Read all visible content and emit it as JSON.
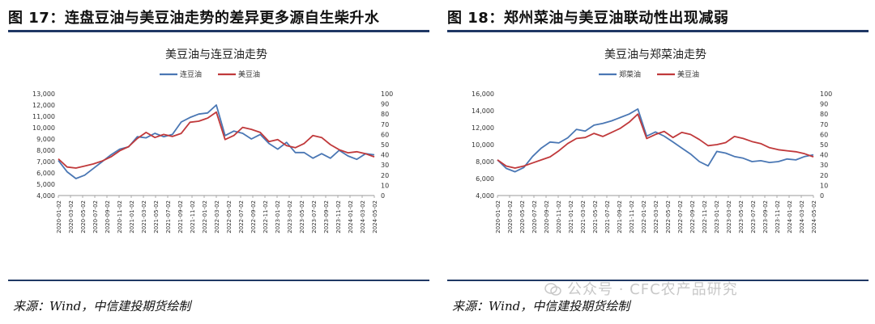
{
  "figures": [
    {
      "title": "图 17：连盘豆油与美豆油走势的差异更多源自生柴升水",
      "source": "来源：Wind，中信建投期货绘制"
    },
    {
      "title": "图 18：郑州菜油与美豆油联动性出现减弱",
      "source": "来源：Wind，中信建投期货绘制"
    }
  ],
  "watermark": "公众号 · CFC农产品研究",
  "colors": {
    "blue": "#4a77b4",
    "red": "#c0393b",
    "rule": "#1f3864"
  },
  "chart_data": [
    {
      "type": "line",
      "title": "美豆油与连豆油走势",
      "legend_position": "top-center",
      "grid": false,
      "x_ticks": [
        "2020-01-02",
        "2020-03-02",
        "2020-05-02",
        "2020-07-02",
        "2020-09-02",
        "2020-11-02",
        "2021-01-02",
        "2021-03-02",
        "2021-05-02",
        "2021-07-02",
        "2021-09-02",
        "2021-11-02",
        "2022-01-02",
        "2022-03-02",
        "2022-05-02",
        "2022-07-02",
        "2022-09-02",
        "2022-11-02",
        "2023-01-02",
        "2023-03-02",
        "2023-05-02",
        "2023-07-02",
        "2023-09-02",
        "2023-11-02",
        "2024-01-02",
        "2024-03-02",
        "2024-05-02"
      ],
      "y_left": {
        "min": 4000,
        "max": 13000,
        "step": 1000,
        "ticks": [
          "4,000",
          "5,000",
          "6,000",
          "7,000",
          "8,000",
          "9,000",
          "10,000",
          "11,000",
          "12,000",
          "13,000"
        ]
      },
      "y_right": {
        "min": 0,
        "max": 100,
        "step": 10,
        "ticks": [
          "0",
          "10",
          "20",
          "30",
          "40",
          "50",
          "60",
          "70",
          "80",
          "90",
          "100"
        ]
      },
      "series": [
        {
          "name": "连豆油",
          "axis": "left",
          "color": "#4a77b4",
          "values": [
            7100,
            6100,
            5500,
            5800,
            6400,
            7000,
            7600,
            8100,
            8300,
            9200,
            9100,
            9500,
            9200,
            9400,
            10500,
            10900,
            11200,
            11300,
            12000,
            9300,
            9700,
            9500,
            9000,
            9400,
            8600,
            8100,
            8700,
            7800,
            7800,
            7300,
            7700,
            7300,
            8000,
            7500,
            7200,
            7700,
            7600
          ]
        },
        {
          "name": "美豆油",
          "axis": "right",
          "color": "#c0393b",
          "values": [
            36,
            28,
            27,
            29,
            31,
            34,
            38,
            44,
            48,
            56,
            62,
            57,
            60,
            58,
            61,
            72,
            73,
            76,
            82,
            55,
            59,
            67,
            65,
            62,
            53,
            55,
            49,
            47,
            51,
            59,
            57,
            50,
            45,
            42,
            43,
            41,
            38
          ]
        }
      ]
    },
    {
      "type": "line",
      "title": "美豆油与郑菜油走势",
      "legend_position": "top-center",
      "grid": false,
      "x_ticks": [
        "2020-01-02",
        "2020-03-02",
        "2020-05-02",
        "2020-07-02",
        "2020-09-02",
        "2020-11-02",
        "2021-01-02",
        "2021-03-02",
        "2021-05-02",
        "2021-07-02",
        "2021-09-02",
        "2021-11-02",
        "2022-01-02",
        "2022-03-02",
        "2022-05-02",
        "2022-07-02",
        "2022-09-02",
        "2022-11-02",
        "2023-01-02",
        "2023-03-02",
        "2023-05-02",
        "2023-07-02",
        "2023-09-02",
        "2023-11-02",
        "2024-01-02",
        "2024-03-02",
        "2024-05-02"
      ],
      "y_left": {
        "min": 4000,
        "max": 16000,
        "step": 2000,
        "ticks": [
          "4,000",
          "6,000",
          "8,000",
          "10,000",
          "12,000",
          "14,000",
          "16,000"
        ]
      },
      "y_right": {
        "min": 0,
        "max": 100,
        "step": 10,
        "ticks": [
          "0",
          "10",
          "20",
          "30",
          "40",
          "50",
          "60",
          "70",
          "80",
          "90",
          "100"
        ]
      },
      "series": [
        {
          "name": "郑菜油",
          "axis": "left",
          "color": "#4a77b4",
          "values": [
            8200,
            7200,
            6800,
            7300,
            8600,
            9600,
            10300,
            10200,
            10800,
            11800,
            11600,
            12300,
            12500,
            12800,
            13200,
            13600,
            14200,
            11000,
            11500,
            11000,
            10300,
            9600,
            8900,
            8000,
            7500,
            9200,
            9000,
            8600,
            8400,
            8000,
            8100,
            7900,
            8000,
            8300,
            8200,
            8600,
            8800
          ]
        },
        {
          "name": "美豆油",
          "axis": "right",
          "color": "#c0393b",
          "values": [
            35,
            29,
            27,
            29,
            32,
            35,
            38,
            44,
            51,
            56,
            57,
            61,
            58,
            62,
            66,
            72,
            80,
            56,
            60,
            63,
            57,
            62,
            60,
            55,
            49,
            50,
            52,
            58,
            56,
            53,
            51,
            47,
            45,
            44,
            43,
            41,
            38
          ]
        }
      ]
    }
  ]
}
